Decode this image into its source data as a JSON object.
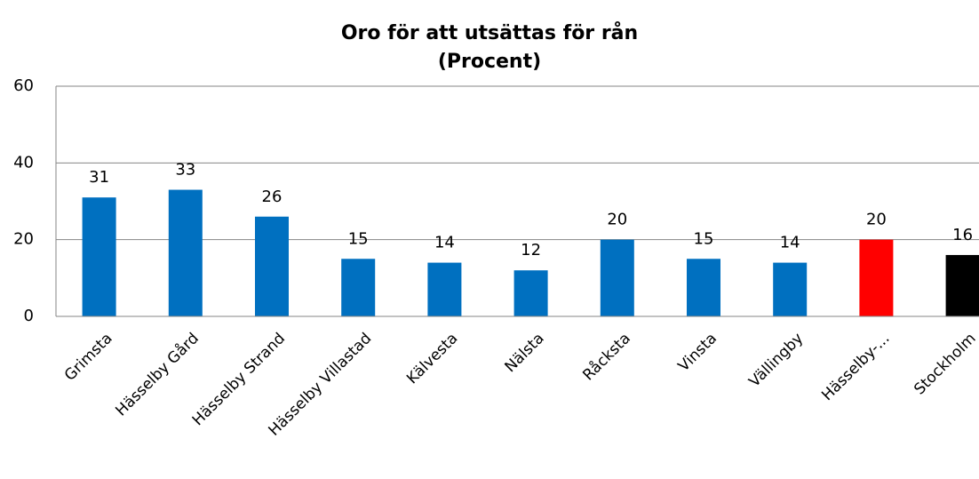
{
  "chart_data": {
    "type": "bar",
    "title": "Oro för att utsättas för rån",
    "subtitle": "(Procent)",
    "categories": [
      "Grimsta",
      "Hässelby Gård",
      "Hässelby Strand",
      "Hässelby Villastad",
      "Kälvesta",
      "Nälsta",
      "Råcksta",
      "Vinsta",
      "Vällingby",
      "Hässelby-...",
      "Stockholm"
    ],
    "values": [
      31,
      33,
      26,
      15,
      14,
      12,
      20,
      15,
      14,
      20,
      16
    ],
    "colors": [
      "#0070c0",
      "#0070c0",
      "#0070c0",
      "#0070c0",
      "#0070c0",
      "#0070c0",
      "#0070c0",
      "#0070c0",
      "#0070c0",
      "#ff0000",
      "#000000"
    ],
    "ylim": [
      0,
      60
    ],
    "yticks": [
      0,
      20,
      40,
      60
    ],
    "grid": true
  }
}
